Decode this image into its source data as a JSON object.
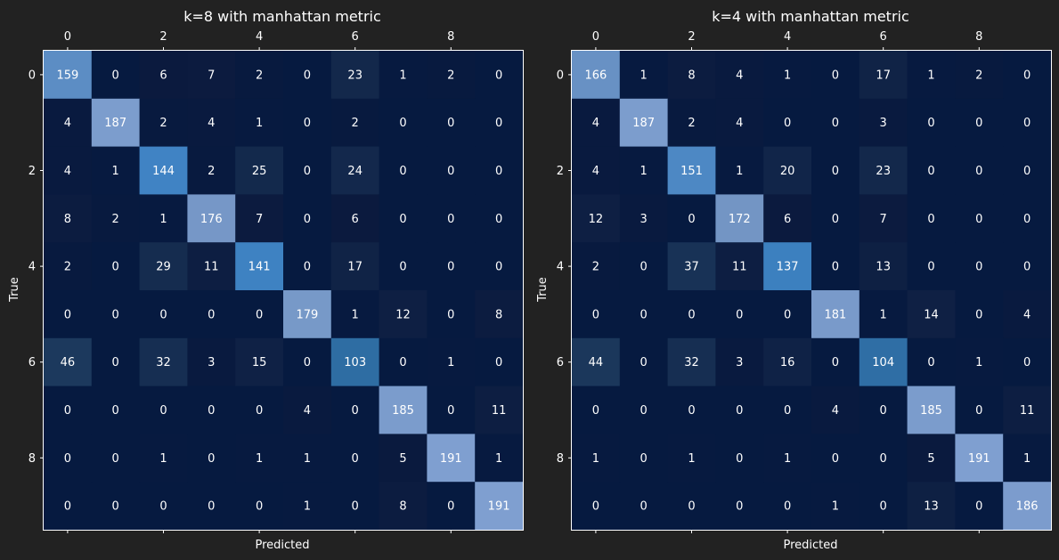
{
  "colors": {
    "background": "#222222",
    "colormap_low": "#0d0d30",
    "colormap_mid": "#3b7fc1",
    "colormap_high": "#7e9fcc"
  },
  "chart_data": [
    {
      "type": "heatmap",
      "title": "k=8 with manhattan metric",
      "xlabel": "Predicted",
      "ylabel": "True",
      "x_tick_labels": [
        "0",
        "2",
        "4",
        "6",
        "8"
      ],
      "y_tick_labels": [
        "0",
        "2",
        "4",
        "6",
        "8"
      ],
      "x_tick_position": "top",
      "matrix": [
        [
          159,
          0,
          6,
          7,
          2,
          0,
          23,
          1,
          2,
          0
        ],
        [
          4,
          187,
          2,
          4,
          1,
          0,
          2,
          0,
          0,
          0
        ],
        [
          4,
          1,
          144,
          2,
          25,
          0,
          24,
          0,
          0,
          0
        ],
        [
          8,
          2,
          1,
          176,
          7,
          0,
          6,
          0,
          0,
          0
        ],
        [
          2,
          0,
          29,
          11,
          141,
          0,
          17,
          0,
          0,
          0
        ],
        [
          0,
          0,
          0,
          0,
          0,
          179,
          1,
          12,
          0,
          8
        ],
        [
          46,
          0,
          32,
          3,
          15,
          0,
          103,
          0,
          1,
          0
        ],
        [
          0,
          0,
          0,
          0,
          0,
          4,
          0,
          185,
          0,
          11
        ],
        [
          0,
          0,
          1,
          0,
          1,
          1,
          0,
          5,
          191,
          1
        ],
        [
          0,
          0,
          0,
          0,
          0,
          1,
          0,
          8,
          0,
          191
        ]
      ],
      "grid": false,
      "colorbar": false
    },
    {
      "type": "heatmap",
      "title": "k=4 with manhattan metric",
      "xlabel": "Predicted",
      "ylabel": "True",
      "x_tick_labels": [
        "0",
        "2",
        "4",
        "6",
        "8"
      ],
      "y_tick_labels": [
        "0",
        "2",
        "4",
        "6",
        "8"
      ],
      "x_tick_position": "top",
      "matrix": [
        [
          166,
          1,
          8,
          4,
          1,
          0,
          17,
          1,
          2,
          0
        ],
        [
          4,
          187,
          2,
          4,
          0,
          0,
          3,
          0,
          0,
          0
        ],
        [
          4,
          1,
          151,
          1,
          20,
          0,
          23,
          0,
          0,
          0
        ],
        [
          12,
          3,
          0,
          172,
          6,
          0,
          7,
          0,
          0,
          0
        ],
        [
          2,
          0,
          37,
          11,
          137,
          0,
          13,
          0,
          0,
          0
        ],
        [
          0,
          0,
          0,
          0,
          0,
          181,
          1,
          14,
          0,
          4
        ],
        [
          44,
          0,
          32,
          3,
          16,
          0,
          104,
          0,
          1,
          0
        ],
        [
          0,
          0,
          0,
          0,
          0,
          4,
          0,
          185,
          0,
          11
        ],
        [
          1,
          0,
          1,
          0,
          1,
          0,
          0,
          5,
          191,
          1
        ],
        [
          0,
          0,
          0,
          0,
          0,
          1,
          0,
          13,
          0,
          186
        ]
      ],
      "grid": false,
      "colorbar": false
    }
  ]
}
